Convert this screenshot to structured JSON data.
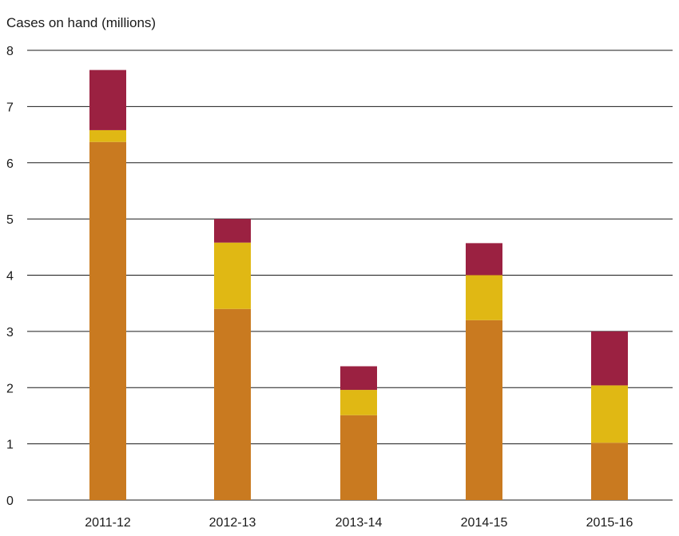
{
  "chart_data": {
    "type": "bar",
    "stacked": true,
    "title": "",
    "xlabel": "",
    "ylabel": "Cases on hand (millions)",
    "ylim": [
      0,
      8
    ],
    "yticks": [
      "0",
      "1",
      "2",
      "3",
      "4",
      "5",
      "6",
      "7",
      "8"
    ],
    "grid": "horizontal",
    "legend": "none",
    "categories": [
      "2011-12",
      "2012-13",
      "2013-14",
      "2014-15",
      "2015-16"
    ],
    "series": [
      {
        "color": "#c97a20",
        "values": [
          6.37,
          3.4,
          1.51,
          3.2,
          1.02
        ]
      },
      {
        "color": "#e0b814",
        "values": [
          0.21,
          1.18,
          0.45,
          0.8,
          1.02
        ]
      },
      {
        "color": "#9b2141",
        "values": [
          1.07,
          0.42,
          0.42,
          0.57,
          0.96
        ]
      }
    ],
    "axis_color": "#1a1a1a"
  }
}
